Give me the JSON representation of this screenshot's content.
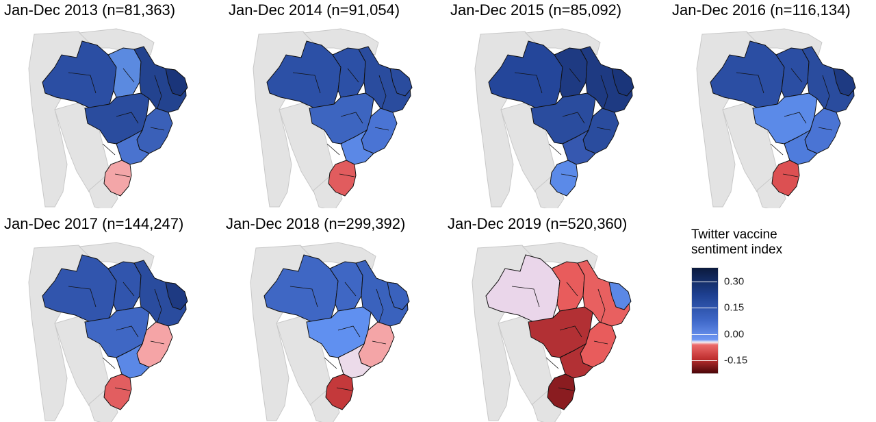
{
  "panels": [
    {
      "title": "Jan-Dec 2013 (n=81,363)",
      "colors": {
        "north": "#2b4ea3",
        "northcentral": "#5b8ae0",
        "northeast": "#23438f",
        "ne_tip": "#1a357a",
        "center": "#2a4c9e",
        "southeast": "#3a60b8",
        "sp": "#4a73cf",
        "south": "#f3a6a8"
      }
    },
    {
      "title": "Jan-Dec 2014 (n=91,054)",
      "colors": {
        "north": "#2c50a6",
        "northcentral": "#2c50a6",
        "northeast": "#2a4c9e",
        "ne_tip": "#2a4c9e",
        "center": "#3d65c0",
        "southeast": "#4a74d4",
        "sp": "#5b88e6",
        "south": "#e15c5e"
      }
    },
    {
      "title": "Jan-Dec 2015 (n=85,092)",
      "colors": {
        "north": "#24469a",
        "northcentral": "#1e3a82",
        "northeast": "#1e3a82",
        "ne_tip": "#1a357a",
        "center": "#2a4c9e",
        "southeast": "#2a4c9e",
        "sp": "#3658b0",
        "south": "#5b8ae8"
      }
    },
    {
      "title": "Jan-Dec 2016 (n=116,134)",
      "colors": {
        "north": "#2b4ea3",
        "northcentral": "#2b4ea3",
        "northeast": "#2a4c9e",
        "ne_tip": "#1e3a82",
        "center": "#5b8ae8",
        "southeast": "#4a74d4",
        "sp": "#4f7cdc",
        "south": "#dc5052"
      }
    },
    {
      "title": "Jan-Dec 2017 (n=144,247)",
      "colors": {
        "north": "#3155ad",
        "northcentral": "#3155ad",
        "northeast": "#2a4c9e",
        "ne_tip": "#1e3a82",
        "center": "#3f67c4",
        "southeast": "#f5a4a6",
        "sp": "#5b88e6",
        "south": "#e25e60"
      }
    },
    {
      "title": "Jan-Dec 2018 (n=299,392)",
      "colors": {
        "north": "#3f67c4",
        "northcentral": "#3f67c4",
        "northeast": "#3a62bd",
        "ne_tip": "#3a62bd",
        "center": "#6090f0",
        "southeast": "#f4a5a7",
        "sp": "#ecdbea",
        "south": "#c4393b"
      }
    },
    {
      "title": "Jan-Dec 2019 (n=520,360)",
      "colors": {
        "north": "#ead6ea",
        "northcentral": "#e85c5c",
        "northeast": "#e86060",
        "ne_tip": "#5b88e6",
        "center": "#b23034",
        "southeast": "#e85c5c",
        "sp": "#b23034",
        "south": "#8a1c20"
      }
    }
  ],
  "legend": {
    "title_line1": "Twitter vaccine",
    "title_line2": "sentiment index",
    "ticks": [
      {
        "label": "0.30",
        "value": 0.3
      },
      {
        "label": "0.15",
        "value": 0.15
      },
      {
        "label": "0.00",
        "value": 0.0
      },
      {
        "label": "-0.15",
        "value": -0.15
      }
    ],
    "range": [
      -0.22,
      0.38
    ]
  }
}
